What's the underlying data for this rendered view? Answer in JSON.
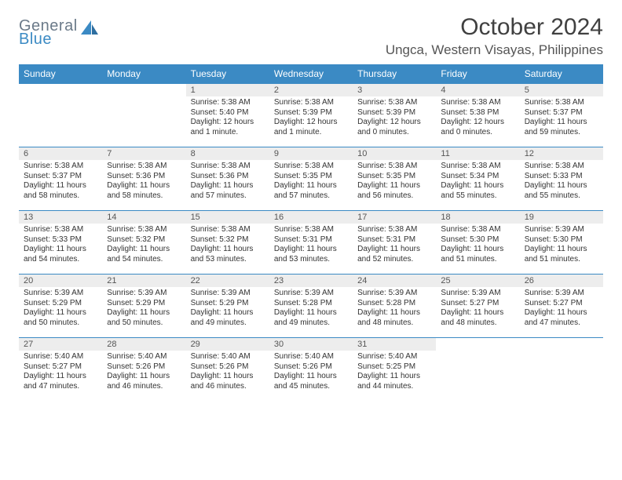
{
  "brand": {
    "general": "General",
    "blue": "Blue"
  },
  "title": "October 2024",
  "location": "Ungca, Western Visayas, Philippines",
  "weekdays": [
    "Sunday",
    "Monday",
    "Tuesday",
    "Wednesday",
    "Thursday",
    "Friday",
    "Saturday"
  ],
  "colors": {
    "header_bg": "#3b8ac4",
    "header_fg": "#ffffff",
    "daynum_bg": "#ededed",
    "row_border": "#3b8ac4",
    "logo_gray": "#6b7a89",
    "logo_blue": "#3b8ac4",
    "page_bg": "#ffffff",
    "text": "#333333"
  },
  "weeks": [
    [
      null,
      null,
      {
        "n": "1",
        "sr": "Sunrise: 5:38 AM",
        "ss": "Sunset: 5:40 PM",
        "dl": "Daylight: 12 hours and 1 minute."
      },
      {
        "n": "2",
        "sr": "Sunrise: 5:38 AM",
        "ss": "Sunset: 5:39 PM",
        "dl": "Daylight: 12 hours and 1 minute."
      },
      {
        "n": "3",
        "sr": "Sunrise: 5:38 AM",
        "ss": "Sunset: 5:39 PM",
        "dl": "Daylight: 12 hours and 0 minutes."
      },
      {
        "n": "4",
        "sr": "Sunrise: 5:38 AM",
        "ss": "Sunset: 5:38 PM",
        "dl": "Daylight: 12 hours and 0 minutes."
      },
      {
        "n": "5",
        "sr": "Sunrise: 5:38 AM",
        "ss": "Sunset: 5:37 PM",
        "dl": "Daylight: 11 hours and 59 minutes."
      }
    ],
    [
      {
        "n": "6",
        "sr": "Sunrise: 5:38 AM",
        "ss": "Sunset: 5:37 PM",
        "dl": "Daylight: 11 hours and 58 minutes."
      },
      {
        "n": "7",
        "sr": "Sunrise: 5:38 AM",
        "ss": "Sunset: 5:36 PM",
        "dl": "Daylight: 11 hours and 58 minutes."
      },
      {
        "n": "8",
        "sr": "Sunrise: 5:38 AM",
        "ss": "Sunset: 5:36 PM",
        "dl": "Daylight: 11 hours and 57 minutes."
      },
      {
        "n": "9",
        "sr": "Sunrise: 5:38 AM",
        "ss": "Sunset: 5:35 PM",
        "dl": "Daylight: 11 hours and 57 minutes."
      },
      {
        "n": "10",
        "sr": "Sunrise: 5:38 AM",
        "ss": "Sunset: 5:35 PM",
        "dl": "Daylight: 11 hours and 56 minutes."
      },
      {
        "n": "11",
        "sr": "Sunrise: 5:38 AM",
        "ss": "Sunset: 5:34 PM",
        "dl": "Daylight: 11 hours and 55 minutes."
      },
      {
        "n": "12",
        "sr": "Sunrise: 5:38 AM",
        "ss": "Sunset: 5:33 PM",
        "dl": "Daylight: 11 hours and 55 minutes."
      }
    ],
    [
      {
        "n": "13",
        "sr": "Sunrise: 5:38 AM",
        "ss": "Sunset: 5:33 PM",
        "dl": "Daylight: 11 hours and 54 minutes."
      },
      {
        "n": "14",
        "sr": "Sunrise: 5:38 AM",
        "ss": "Sunset: 5:32 PM",
        "dl": "Daylight: 11 hours and 54 minutes."
      },
      {
        "n": "15",
        "sr": "Sunrise: 5:38 AM",
        "ss": "Sunset: 5:32 PM",
        "dl": "Daylight: 11 hours and 53 minutes."
      },
      {
        "n": "16",
        "sr": "Sunrise: 5:38 AM",
        "ss": "Sunset: 5:31 PM",
        "dl": "Daylight: 11 hours and 53 minutes."
      },
      {
        "n": "17",
        "sr": "Sunrise: 5:38 AM",
        "ss": "Sunset: 5:31 PM",
        "dl": "Daylight: 11 hours and 52 minutes."
      },
      {
        "n": "18",
        "sr": "Sunrise: 5:38 AM",
        "ss": "Sunset: 5:30 PM",
        "dl": "Daylight: 11 hours and 51 minutes."
      },
      {
        "n": "19",
        "sr": "Sunrise: 5:39 AM",
        "ss": "Sunset: 5:30 PM",
        "dl": "Daylight: 11 hours and 51 minutes."
      }
    ],
    [
      {
        "n": "20",
        "sr": "Sunrise: 5:39 AM",
        "ss": "Sunset: 5:29 PM",
        "dl": "Daylight: 11 hours and 50 minutes."
      },
      {
        "n": "21",
        "sr": "Sunrise: 5:39 AM",
        "ss": "Sunset: 5:29 PM",
        "dl": "Daylight: 11 hours and 50 minutes."
      },
      {
        "n": "22",
        "sr": "Sunrise: 5:39 AM",
        "ss": "Sunset: 5:29 PM",
        "dl": "Daylight: 11 hours and 49 minutes."
      },
      {
        "n": "23",
        "sr": "Sunrise: 5:39 AM",
        "ss": "Sunset: 5:28 PM",
        "dl": "Daylight: 11 hours and 49 minutes."
      },
      {
        "n": "24",
        "sr": "Sunrise: 5:39 AM",
        "ss": "Sunset: 5:28 PM",
        "dl": "Daylight: 11 hours and 48 minutes."
      },
      {
        "n": "25",
        "sr": "Sunrise: 5:39 AM",
        "ss": "Sunset: 5:27 PM",
        "dl": "Daylight: 11 hours and 48 minutes."
      },
      {
        "n": "26",
        "sr": "Sunrise: 5:39 AM",
        "ss": "Sunset: 5:27 PM",
        "dl": "Daylight: 11 hours and 47 minutes."
      }
    ],
    [
      {
        "n": "27",
        "sr": "Sunrise: 5:40 AM",
        "ss": "Sunset: 5:27 PM",
        "dl": "Daylight: 11 hours and 47 minutes."
      },
      {
        "n": "28",
        "sr": "Sunrise: 5:40 AM",
        "ss": "Sunset: 5:26 PM",
        "dl": "Daylight: 11 hours and 46 minutes."
      },
      {
        "n": "29",
        "sr": "Sunrise: 5:40 AM",
        "ss": "Sunset: 5:26 PM",
        "dl": "Daylight: 11 hours and 46 minutes."
      },
      {
        "n": "30",
        "sr": "Sunrise: 5:40 AM",
        "ss": "Sunset: 5:26 PM",
        "dl": "Daylight: 11 hours and 45 minutes."
      },
      {
        "n": "31",
        "sr": "Sunrise: 5:40 AM",
        "ss": "Sunset: 5:25 PM",
        "dl": "Daylight: 11 hours and 44 minutes."
      },
      null,
      null
    ]
  ]
}
